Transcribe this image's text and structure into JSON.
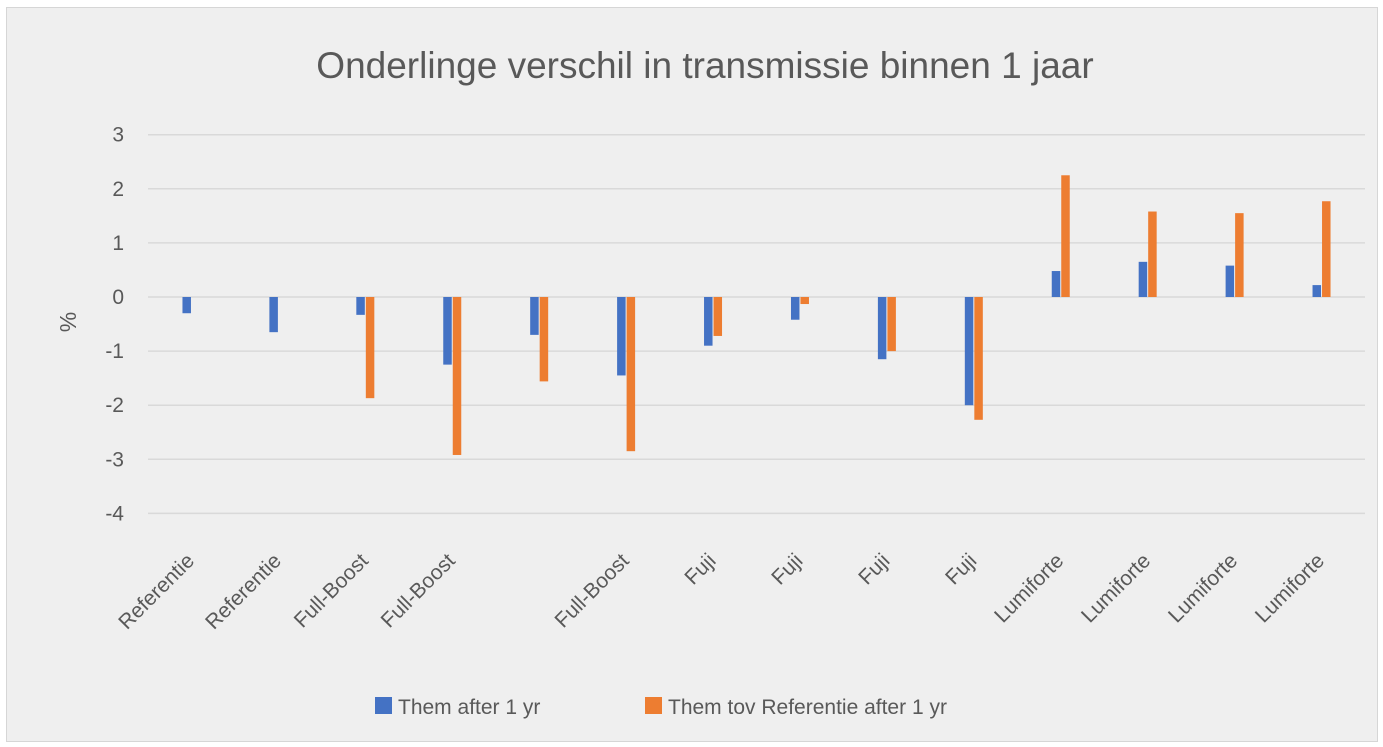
{
  "chart_data": {
    "type": "bar",
    "title": "Onderlinge verschil in transmissie binnen 1 jaar",
    "xlabel": "",
    "ylabel": "%",
    "ylim": [
      -4,
      3
    ],
    "yticks": [
      3,
      2,
      1,
      0,
      -1,
      -2,
      -3,
      -4
    ],
    "grid": true,
    "legend_position": "bottom",
    "categories": [
      "Referentie",
      "Referentie",
      "Full-Boost",
      "Full-Boost",
      "",
      "Full-Boost",
      "Fuji",
      "Fuji",
      "Fuji",
      "Fuji",
      "Lumiforte",
      "Lumiforte",
      "Lumiforte",
      "Lumiforte"
    ],
    "series": [
      {
        "name": "Them after 1 yr",
        "color": "#4472c4",
        "values": [
          -0.3,
          -0.65,
          -0.33,
          -1.25,
          -0.7,
          -1.45,
          -0.9,
          -0.42,
          -1.15,
          -2.0,
          0.48,
          0.65,
          0.58,
          0.22
        ]
      },
      {
        "name": "Them tov Referentie after 1 yr",
        "color": "#ed7d31",
        "values": [
          null,
          null,
          -1.87,
          -2.92,
          -1.56,
          -2.85,
          -0.72,
          -0.13,
          -1.0,
          -2.27,
          2.25,
          1.58,
          1.55,
          1.77
        ]
      }
    ]
  }
}
